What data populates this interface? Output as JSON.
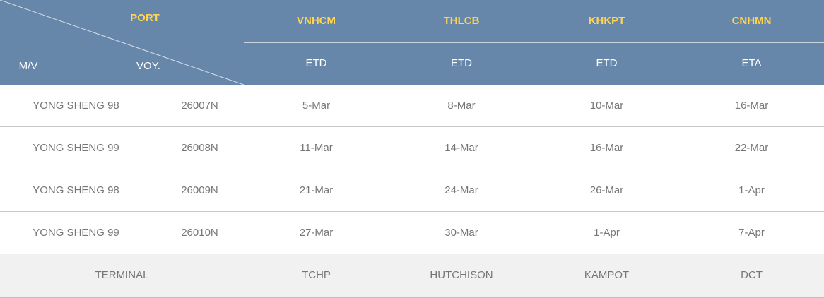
{
  "header": {
    "port_label": "PORT",
    "mv_label": "M/V",
    "voy_label": "VOY.",
    "ports": [
      {
        "code": "VNHCM",
        "type": "ETD"
      },
      {
        "code": "THLCB",
        "type": "ETD"
      },
      {
        "code": "KHKPT",
        "type": "ETD"
      },
      {
        "code": "CNHMN",
        "type": "ETA"
      }
    ]
  },
  "rows": [
    {
      "vessel": "YONG SHENG 98",
      "voyage": "26007N",
      "dates": [
        "5-Mar",
        "8-Mar",
        "10-Mar",
        "16-Mar"
      ]
    },
    {
      "vessel": "YONG SHENG 99",
      "voyage": "26008N",
      "dates": [
        "11-Mar",
        "14-Mar",
        "16-Mar",
        "22-Mar"
      ]
    },
    {
      "vessel": "YONG SHENG 98",
      "voyage": "26009N",
      "dates": [
        "21-Mar",
        "24-Mar",
        "26-Mar",
        "1-Apr"
      ]
    },
    {
      "vessel": "YONG SHENG 99",
      "voyage": "26010N",
      "dates": [
        "27-Mar",
        "30-Mar",
        "1-Apr",
        "7-Apr"
      ]
    }
  ],
  "terminal": {
    "label": "TERMINAL",
    "values": [
      "TCHP",
      "HUTCHISON",
      "KAMPOT",
      "DCT"
    ]
  },
  "colors": {
    "header_bg": "#6787aa",
    "port_code": "#ffd54f",
    "text": "#767676",
    "terminal_bg": "#f1f1f1"
  }
}
